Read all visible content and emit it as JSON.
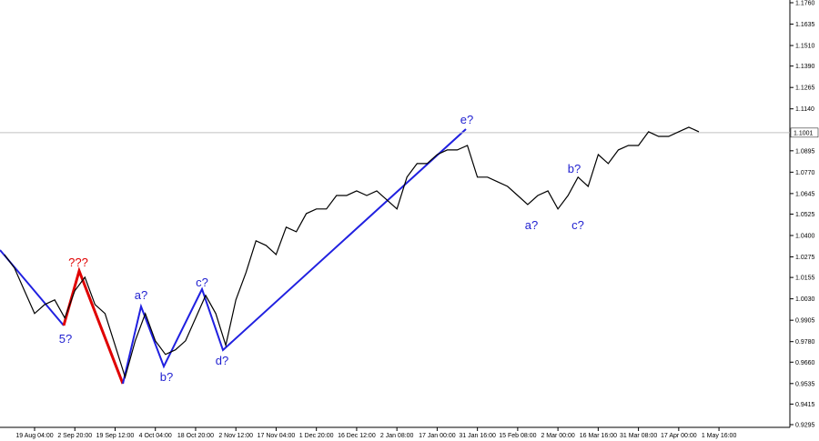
{
  "chart_data": {
    "type": "line",
    "categories": [
      null,
      null,
      null,
      "19 Aug 04:00",
      null,
      null,
      null,
      "2 Sep 20:00",
      null,
      null,
      null,
      "19 Sep 12:00",
      null,
      null,
      null,
      "4 Oct 04:00",
      null,
      null,
      null,
      "18 Oct 20:00",
      null,
      null,
      null,
      "2 Nov 12:00",
      null,
      null,
      null,
      "17 Nov 04:00",
      null,
      null,
      null,
      "1 Dec 20:00",
      null,
      null,
      null,
      "16 Dec 12:00",
      null,
      null,
      null,
      "2 Jan 08:00",
      null,
      null,
      null,
      "17 Jan 00:00",
      null,
      null,
      null,
      "31 Jan 16:00",
      null,
      null,
      null,
      "15 Feb 08:00",
      null,
      null,
      null,
      "2 Mar 00:00",
      null,
      null,
      null,
      "16 Mar 16:00",
      null,
      null,
      null,
      "31 Mar 08:00",
      null,
      null,
      null,
      "17 Apr 00:00",
      null,
      null,
      null,
      "1 May 16:00"
    ],
    "series": [
      {
        "color": "#000000",
        "values": [
          1.0289,
          1.021,
          1.0077,
          0.9944,
          0.9997,
          1.0024,
          0.9918,
          1.0077,
          1.0156,
          0.9997,
          0.9944,
          0.9758,
          0.9572,
          0.9785,
          0.9944,
          0.9785,
          0.9705,
          0.9732,
          0.9785,
          0.9918,
          1.005,
          0.9944,
          0.9758,
          1.0024,
          1.0183,
          1.0369,
          1.0342,
          1.0289,
          1.0449,
          1.0422,
          1.0528,
          1.0555,
          1.0555,
          1.0634,
          1.0634,
          1.0661,
          1.0634,
          1.0661,
          1.0608,
          1.0555,
          1.0741,
          1.082,
          1.082,
          1.0873,
          1.09,
          1.09,
          1.0926,
          1.0741,
          1.0741,
          1.0714,
          1.0687,
          1.0634,
          1.0581,
          1.0634,
          1.0661,
          1.0555,
          1.0634,
          1.0741,
          1.0687,
          1.0873,
          1.082,
          1.09,
          1.0926,
          1.0926,
          1.1006,
          1.0979,
          1.0979,
          1.1006,
          1.1033,
          1.1006,
          null,
          null
        ]
      }
    ],
    "ylim": [
      0.9279,
      1.1776
    ],
    "yticks": [
      {
        "value": 0.9295,
        "label": "0.9295"
      },
      {
        "value": 0.9415,
        "label": "0.9415"
      },
      {
        "value": 0.9535,
        "label": "0.9535"
      },
      {
        "value": 0.966,
        "label": "0.9660"
      },
      {
        "value": 0.978,
        "label": "0.9780"
      },
      {
        "value": 0.9905,
        "label": "0.9905"
      },
      {
        "value": 1.003,
        "label": "1.0030"
      },
      {
        "value": 1.0155,
        "label": "1.0155"
      },
      {
        "value": 1.0275,
        "label": "1.0275"
      },
      {
        "value": 1.04,
        "label": "1.0400"
      },
      {
        "value": 1.0525,
        "label": "1.0525"
      },
      {
        "value": 1.0645,
        "label": "1.0645"
      },
      {
        "value": 1.077,
        "label": "1.0770"
      },
      {
        "value": 1.0895,
        "label": "1.0895"
      },
      {
        "value": 1.114,
        "label": "1.1140"
      },
      {
        "value": 1.1265,
        "label": "1.1265"
      },
      {
        "value": 1.139,
        "label": "1.1390"
      },
      {
        "value": 1.151,
        "label": "1.1510"
      },
      {
        "value": 1.1635,
        "label": "1.1635"
      },
      {
        "value": 1.176,
        "label": "1.1760"
      }
    ],
    "current_price": 1.1001,
    "annotations": [
      "5?",
      "???",
      "a?",
      "b?",
      "c?",
      "d?",
      "e?",
      "a?",
      "b?",
      "c?"
    ]
  }
}
